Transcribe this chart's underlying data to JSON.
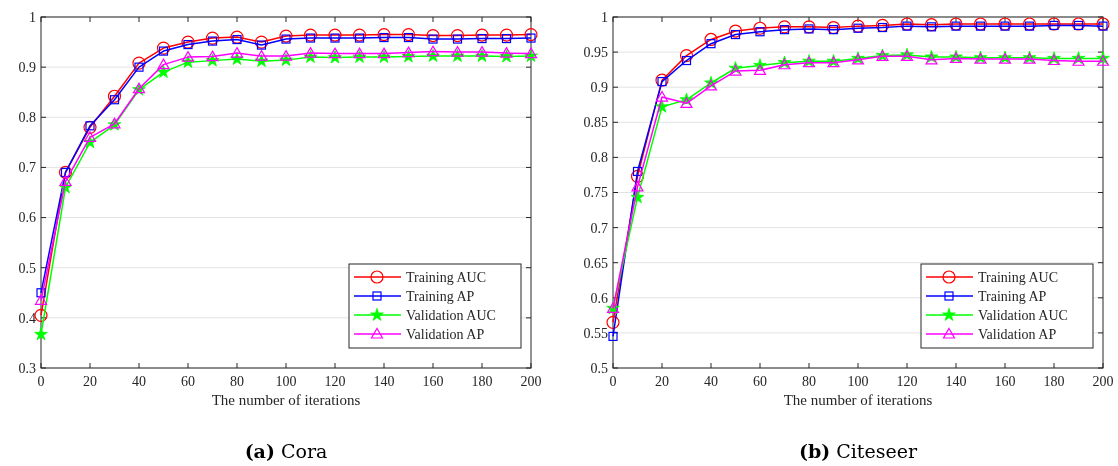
{
  "chart_data": [
    {
      "type": "line",
      "title": "(a) Cora",
      "xlabel": "The number of iterations",
      "x": [
        0,
        10,
        20,
        30,
        40,
        50,
        60,
        70,
        80,
        90,
        100,
        110,
        120,
        130,
        140,
        150,
        160,
        170,
        180,
        190,
        200
      ],
      "xlim": [
        0,
        200
      ],
      "xticks": [
        0,
        20,
        40,
        60,
        80,
        100,
        120,
        140,
        160,
        180,
        200
      ],
      "ylim": [
        0.3,
        1
      ],
      "yticks": [
        0.3,
        0.4,
        0.5,
        0.6,
        0.7,
        0.8,
        0.9,
        1
      ],
      "grid": "y",
      "legend": "bottom right",
      "line_style": "solid",
      "series": [
        {
          "name": "Training AUC",
          "color": "#ff0000",
          "marker": "circle",
          "values": [
            0.405,
            0.69,
            0.78,
            0.842,
            0.908,
            0.938,
            0.95,
            0.958,
            0.96,
            0.95,
            0.962,
            0.964,
            0.964,
            0.964,
            0.965,
            0.965,
            0.963,
            0.963,
            0.964,
            0.964,
            0.965
          ]
        },
        {
          "name": "Training AP",
          "color": "#0000ff",
          "marker": "square",
          "values": [
            0.45,
            0.69,
            0.783,
            0.835,
            0.9,
            0.932,
            0.945,
            0.952,
            0.955,
            0.944,
            0.956,
            0.958,
            0.958,
            0.958,
            0.959,
            0.959,
            0.956,
            0.956,
            0.957,
            0.957,
            0.958
          ]
        },
        {
          "name": "Validation AUC",
          "color": "#00ff00",
          "marker": "star",
          "values": [
            0.367,
            0.66,
            0.75,
            0.785,
            0.855,
            0.89,
            0.91,
            0.913,
            0.916,
            0.912,
            0.914,
            0.92,
            0.919,
            0.92,
            0.92,
            0.921,
            0.922,
            0.922,
            0.922,
            0.921,
            0.922
          ]
        },
        {
          "name": "Validation AP",
          "color": "#ff00ff",
          "marker": "triangle",
          "values": [
            0.435,
            0.672,
            0.76,
            0.787,
            0.857,
            0.905,
            0.92,
            0.921,
            0.928,
            0.922,
            0.922,
            0.928,
            0.927,
            0.927,
            0.927,
            0.929,
            0.931,
            0.93,
            0.93,
            0.928,
            0.927
          ]
        }
      ]
    },
    {
      "type": "line",
      "title": "(b) Citeseer",
      "xlabel": "The number of iterations",
      "x": [
        0,
        10,
        20,
        30,
        40,
        50,
        60,
        70,
        80,
        90,
        100,
        110,
        120,
        130,
        140,
        150,
        160,
        170,
        180,
        190,
        200
      ],
      "xlim": [
        0,
        200
      ],
      "xticks": [
        0,
        20,
        40,
        60,
        80,
        100,
        120,
        140,
        160,
        180,
        200
      ],
      "ylim": [
        0.5,
        1
      ],
      "yticks": [
        0.5,
        0.55,
        0.6,
        0.65,
        0.7,
        0.75,
        0.8,
        0.85,
        0.9,
        0.95,
        1
      ],
      "grid": "y",
      "legend": "bottom right",
      "line_style": "solid",
      "series": [
        {
          "name": "Training AUC",
          "color": "#ff0000",
          "marker": "circle",
          "values": [
            0.565,
            0.773,
            0.91,
            0.945,
            0.968,
            0.98,
            0.984,
            0.986,
            0.986,
            0.985,
            0.987,
            0.988,
            0.99,
            0.989,
            0.99,
            0.99,
            0.99,
            0.99,
            0.99,
            0.99,
            0.99
          ]
        },
        {
          "name": "Training AP",
          "color": "#0000ff",
          "marker": "square",
          "values": [
            0.545,
            0.78,
            0.908,
            0.938,
            0.962,
            0.975,
            0.979,
            0.982,
            0.983,
            0.982,
            0.984,
            0.985,
            0.987,
            0.986,
            0.987,
            0.987,
            0.987,
            0.987,
            0.988,
            0.988,
            0.987
          ]
        },
        {
          "name": "Validation AUC",
          "color": "#00ff00",
          "marker": "star",
          "values": [
            0.585,
            0.743,
            0.872,
            0.882,
            0.906,
            0.927,
            0.931,
            0.935,
            0.937,
            0.937,
            0.941,
            0.945,
            0.946,
            0.943,
            0.943,
            0.942,
            0.942,
            0.942,
            0.941,
            0.941,
            0.941
          ]
        },
        {
          "name": "Validation AP",
          "color": "#ff00ff",
          "marker": "triangle",
          "values": [
            0.585,
            0.758,
            0.886,
            0.877,
            0.902,
            0.923,
            0.924,
            0.932,
            0.935,
            0.935,
            0.939,
            0.944,
            0.944,
            0.939,
            0.941,
            0.94,
            0.94,
            0.94,
            0.938,
            0.937,
            0.937
          ]
        }
      ]
    }
  ]
}
